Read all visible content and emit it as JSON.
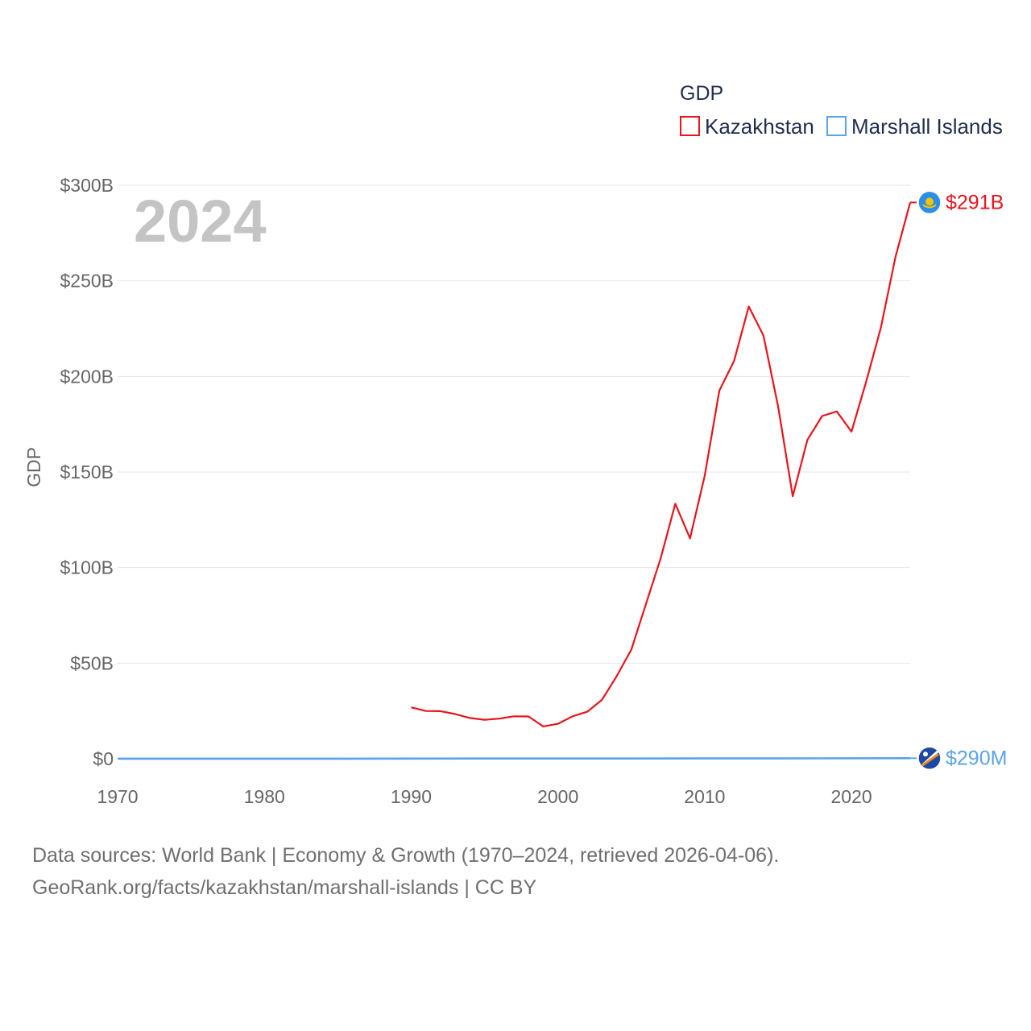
{
  "chart_data": {
    "type": "line",
    "title": "",
    "year_label": "2024",
    "xlabel": "",
    "ylabel": "GDP",
    "xlim": [
      1970,
      2024
    ],
    "ylim": [
      0,
      300
    ],
    "y_unit": "billion USD",
    "x_ticks": [
      "1970",
      "1980",
      "1990",
      "2000",
      "2010",
      "2020"
    ],
    "x_tick_values": [
      1970,
      1980,
      1990,
      2000,
      2010,
      2020
    ],
    "y_ticks": [
      "$0",
      "$50B",
      "$100B",
      "$150B",
      "$200B",
      "$250B",
      "$300B"
    ],
    "y_tick_values": [
      0,
      50,
      100,
      150,
      200,
      250,
      300
    ],
    "grid": true,
    "legend": {
      "title": "GDP",
      "position": "top-right"
    },
    "series": [
      {
        "name": "Kazakhstan",
        "color": "#e8141c",
        "end_label": "$291B",
        "flag_icon": "kazakhstan-flag-icon",
        "x": [
          1990,
          1991,
          1992,
          1993,
          1994,
          1995,
          1996,
          1997,
          1998,
          1999,
          2000,
          2001,
          2002,
          2003,
          2004,
          2005,
          2006,
          2007,
          2008,
          2009,
          2010,
          2011,
          2012,
          2013,
          2014,
          2015,
          2016,
          2017,
          2018,
          2019,
          2020,
          2021,
          2022,
          2023,
          2024
        ],
        "values": [
          26.9,
          25.0,
          24.9,
          23.4,
          21.3,
          20.4,
          21.0,
          22.2,
          22.1,
          16.9,
          18.3,
          22.2,
          24.6,
          30.8,
          43.2,
          57.1,
          81.0,
          104.8,
          133.4,
          115.3,
          148.0,
          192.6,
          208.0,
          236.6,
          221.4,
          184.4,
          137.3,
          166.8,
          179.3,
          181.7,
          171.1,
          197.1,
          225.5,
          262.6,
          291.0
        ]
      },
      {
        "name": "Marshall Islands",
        "color": "#5aa3e6",
        "end_label": "$290M",
        "flag_icon": "marshall-islands-flag-icon",
        "x": [
          1970,
          1975,
          1980,
          1985,
          1990,
          1995,
          2000,
          2005,
          2010,
          2015,
          2020,
          2024
        ],
        "values": [
          0.03,
          0.04,
          0.05,
          0.06,
          0.08,
          0.12,
          0.11,
          0.14,
          0.17,
          0.18,
          0.24,
          0.29
        ]
      }
    ]
  },
  "footer": {
    "line1": "Data sources: World Bank | Economy & Growth (1970–2024, retrieved 2026-04-06).",
    "line2": "GeoRank.org/facts/kazakhstan/marshall-islands | CC BY"
  }
}
